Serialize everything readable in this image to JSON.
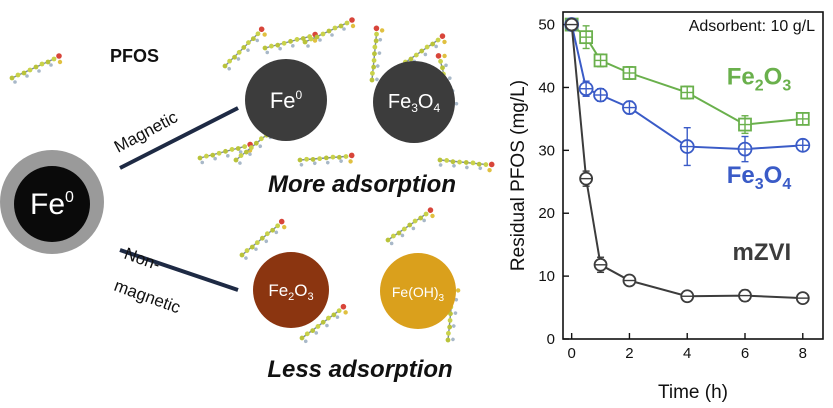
{
  "schematic": {
    "legend_label": "PFOS",
    "center_particle": "Fe",
    "center_particle_sup": "0",
    "branch_top_label": "Magnetic",
    "branch_bottom_label_1": "Non-",
    "branch_bottom_label_2": "magnetic",
    "top_particle_1": "Fe",
    "top_particle_1_sup": "0",
    "top_particle_2": "Fe",
    "top_particle_2_sub1": "3",
    "top_particle_2_mid": "O",
    "top_particle_2_sub2": "4",
    "top_caption": "More adsorption",
    "bottom_particle_1": "Fe",
    "bottom_particle_1_sub1": "2",
    "bottom_particle_1_mid": "O",
    "bottom_particle_1_sub2": "3",
    "bottom_particle_2": "Fe(OH)",
    "bottom_particle_2_sub": "3",
    "bottom_caption": "Less adsorption",
    "colors": {
      "center_shell": "#9a9a9a",
      "center_core": "#0a0a0a",
      "fe0": "#3c3c3c",
      "fe3o4": "#3c3c3c",
      "fe2o3": "#8b3510",
      "feoh3": "#daa01c",
      "branch_line": "#1e2a44"
    }
  },
  "chart_data": {
    "type": "line",
    "annotation": "Adsorbent: 10 g/L",
    "xlabel": "Time (h)",
    "ylabel": "Residual PFOS (mg/L)",
    "xlim": [
      -0.3,
      8.7
    ],
    "ylim": [
      0,
      52
    ],
    "xticks": [
      0,
      2,
      4,
      6,
      8
    ],
    "yticks": [
      0,
      10,
      20,
      30,
      40,
      50
    ],
    "series": [
      {
        "name": "Fe",
        "sub1": "2",
        "mid": "O",
        "sub2": "3",
        "label_anchor_x": 7.6,
        "label_anchor_y": 40.5,
        "color": "#6ab04c",
        "marker": "square-cross",
        "x": [
          0,
          0.5,
          1,
          2,
          4,
          6,
          8
        ],
        "y": [
          50,
          48,
          44.3,
          42.3,
          39.2,
          34.1,
          35
        ],
        "err": [
          0.8,
          1.8,
          1.0,
          1.0,
          1.0,
          1.4,
          0.8
        ]
      },
      {
        "name": "Fe",
        "sub1": "3",
        "mid": "O",
        "sub2": "4",
        "label_anchor_x": 7.6,
        "label_anchor_y": 24.8,
        "color": "#3a5bc7",
        "marker": "circle-cross",
        "x": [
          0,
          0.5,
          1,
          2,
          4,
          6,
          8
        ],
        "y": [
          50,
          39.8,
          38.8,
          36.8,
          30.6,
          30.2,
          30.8
        ],
        "err": [
          0.8,
          1.2,
          1.0,
          1.0,
          3.0,
          2.0,
          0.8
        ]
      },
      {
        "name": "mZVI",
        "label_anchor_x": 7.6,
        "label_anchor_y": 12.6,
        "color": "#3c3c3c",
        "marker": "circle-dash",
        "x": [
          0,
          0.5,
          1,
          2,
          4,
          6,
          8
        ],
        "y": [
          50,
          25.5,
          11.8,
          9.3,
          6.8,
          6.9,
          6.5
        ],
        "err": [
          0.8,
          1.2,
          1.2,
          0.8,
          0.5,
          0.9,
          0.5
        ]
      }
    ]
  }
}
